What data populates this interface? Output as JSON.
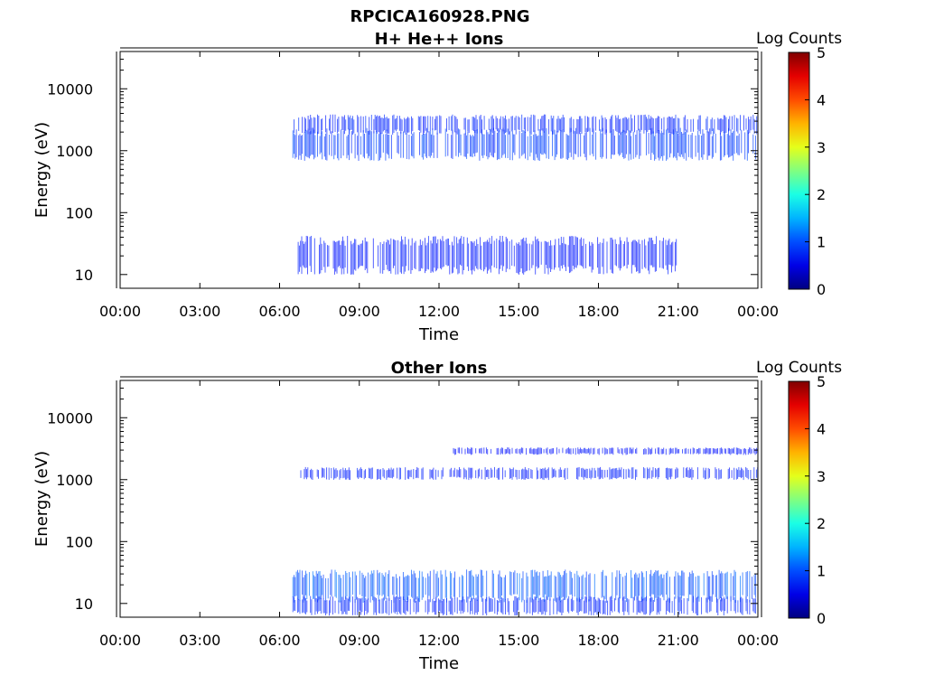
{
  "figure_title": "RPCICA160928.PNG",
  "chart_data": [
    {
      "type": "heatmap",
      "title": "H+ He++ Ions",
      "xlabel": "Time",
      "ylabel": "Energy (eV)",
      "x_ticks": [
        "00:00",
        "03:00",
        "06:00",
        "09:00",
        "12:00",
        "15:00",
        "18:00",
        "21:00",
        "00:00"
      ],
      "xlim_hours": [
        0,
        24
      ],
      "y_scale": "log",
      "y_ticks": [
        "10",
        "100",
        "1000",
        "10000"
      ],
      "ylim": [
        6,
        40000
      ],
      "colorbar": {
        "label": "Log Counts",
        "ticks": [
          "0",
          "1",
          "2",
          "3",
          "4",
          "5"
        ],
        "range": [
          0,
          5
        ],
        "colormap": "jet"
      },
      "bands": [
        {
          "start_h": 6.5,
          "end_h": 24.0,
          "e_min": 800,
          "e_max": 2000,
          "level": 0.55
        },
        {
          "start_h": 6.5,
          "end_h": 24.0,
          "e_min": 2000,
          "e_max": 3500,
          "level": 0.35
        },
        {
          "start_h": 6.7,
          "end_h": 21.0,
          "e_min": 12,
          "e_max": 35,
          "level": 0.25
        }
      ]
    },
    {
      "type": "heatmap",
      "title": "Other Ions",
      "xlabel": "Time",
      "ylabel": "Energy (eV)",
      "x_ticks": [
        "00:00",
        "03:00",
        "06:00",
        "09:00",
        "12:00",
        "15:00",
        "18:00",
        "21:00",
        "00:00"
      ],
      "xlim_hours": [
        0,
        24
      ],
      "y_scale": "log",
      "y_ticks": [
        "10",
        "100",
        "1000",
        "10000"
      ],
      "ylim": [
        6,
        40000
      ],
      "colorbar": {
        "label": "Log Counts",
        "ticks": [
          "0",
          "1",
          "2",
          "3",
          "4",
          "5"
        ],
        "range": [
          0,
          5
        ],
        "colormap": "jet"
      },
      "bands": [
        {
          "start_h": 6.5,
          "end_h": 24.0,
          "e_min": 12,
          "e_max": 30,
          "level": 0.8
        },
        {
          "start_h": 6.5,
          "end_h": 24.0,
          "e_min": 7,
          "e_max": 12,
          "level": 0.35
        },
        {
          "start_h": 6.8,
          "end_h": 24.0,
          "e_min": 1050,
          "e_max": 1500,
          "level": 0.3
        },
        {
          "start_h": 12.5,
          "end_h": 24.0,
          "e_min": 2600,
          "e_max": 3200,
          "level": 0.2
        }
      ]
    }
  ]
}
